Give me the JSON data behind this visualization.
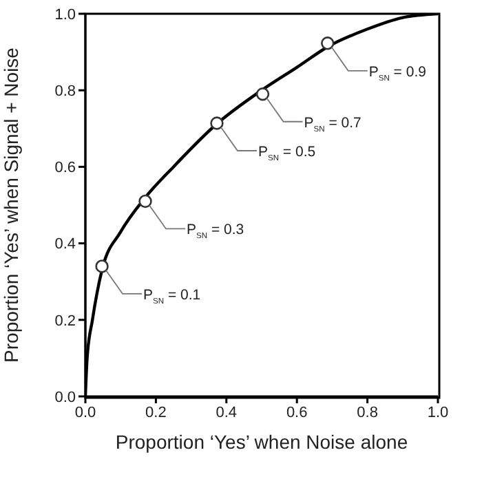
{
  "chart_data": {
    "type": "line",
    "xlabel": "Proportion ‘Yes’ when Noise alone",
    "ylabel": "Proportion ‘Yes’ when Signal + Noise",
    "xlim": [
      0,
      1
    ],
    "ylim": [
      0,
      1
    ],
    "xticks": [
      {
        "value": 0,
        "label": "0.0"
      },
      {
        "value": 0.2,
        "label": "0.2"
      },
      {
        "value": 0.4,
        "label": "0.4"
      },
      {
        "value": 0.6,
        "label": "0.6"
      },
      {
        "value": 0.8,
        "label": "0.8"
      },
      {
        "value": 1,
        "label": "1.0"
      }
    ],
    "yticks": [
      {
        "value": 0,
        "label": "0.0"
      },
      {
        "value": 0.2,
        "label": "0.2"
      },
      {
        "value": 0.4,
        "label": "0.4"
      },
      {
        "value": 0.6,
        "label": "0.6"
      },
      {
        "value": 0.8,
        "label": "0.8"
      },
      {
        "value": 1,
        "label": "1.0"
      }
    ],
    "grid": false,
    "series": [
      {
        "color": "#000000",
        "marker": "none",
        "line_style": "solid",
        "x": [
          0,
          0.005,
          0.02,
          0.047,
          0.1,
          0.17,
          0.25,
          0.37,
          0.5,
          0.6,
          0.69,
          0.8,
          0.9,
          1
        ],
        "values": [
          0,
          0.1,
          0.2,
          0.33,
          0.43,
          0.52,
          0.6,
          0.71,
          0.8,
          0.86,
          0.915,
          0.96,
          0.99,
          1
        ]
      },
      {
        "type": "scatter",
        "color": "#333333",
        "marker": "circle",
        "x": [
          0.047,
          0.17,
          0.373,
          0.503,
          0.687
        ],
        "values": [
          0.34,
          0.51,
          0.714,
          0.79,
          0.923
        ]
      }
    ],
    "annotations": [
      {
        "text": "P$_{SN}$ = 0.1",
        "x": 0.047,
        "y": 0.34
      },
      {
        "text": "P$_{SN}$ = 0.3",
        "x": 0.17,
        "y": 0.51
      },
      {
        "text": "P$_{SN}$ = 0.5",
        "x": 0.373,
        "y": 0.714
      },
      {
        "text": "P$_{SN}$ = 0.7",
        "x": 0.503,
        "y": 0.79
      },
      {
        "text": "P$_{SN}$ = 0.9",
        "x": 0.687,
        "y": 0.923
      }
    ]
  }
}
